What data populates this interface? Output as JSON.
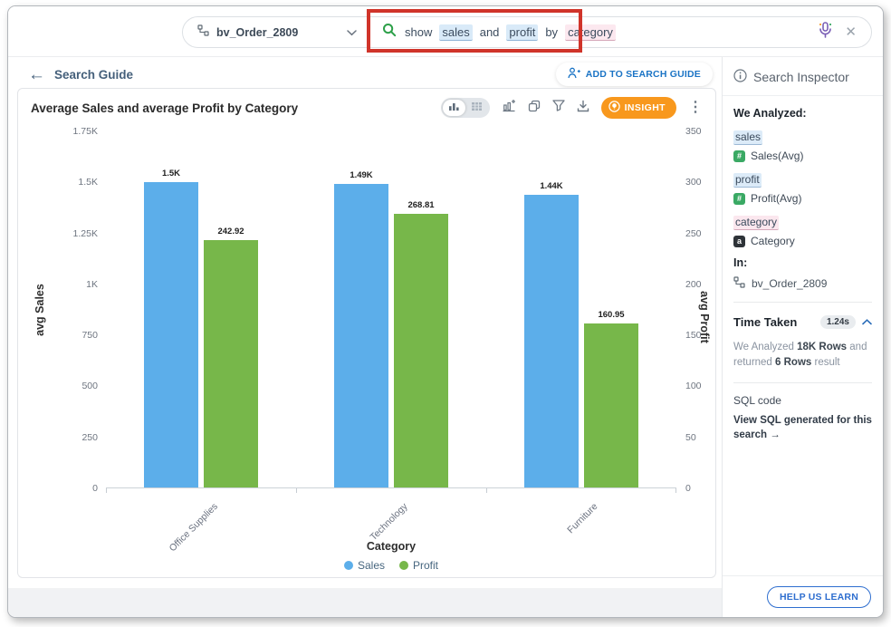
{
  "topbar": {
    "datasource": {
      "label": "bv_Order_2809"
    },
    "search": {
      "tokens": [
        {
          "text": "show",
          "type": "plain"
        },
        {
          "text": "sales",
          "type": "measure"
        },
        {
          "text": "and",
          "type": "plain"
        },
        {
          "text": "profit",
          "type": "measure"
        },
        {
          "text": "by",
          "type": "plain"
        },
        {
          "text": "category",
          "type": "attribute"
        }
      ]
    }
  },
  "nav": {
    "back_label": "Search Guide",
    "add_button_label": "ADD TO SEARCH GUIDE"
  },
  "card": {
    "title": "Average Sales and average Profit by Category",
    "insight_label": "INSIGHT"
  },
  "chart_data": {
    "type": "bar",
    "title": "Average Sales and average Profit by Category",
    "categories": [
      "Office Supplies",
      "Technology",
      "Furniture"
    ],
    "series": [
      {
        "name": "Sales",
        "axis": "left",
        "color": "#5caeea",
        "values": [
          1500,
          1490,
          1440
        ],
        "labels": [
          "1.5K",
          "1.49K",
          "1.44K"
        ]
      },
      {
        "name": "Profit",
        "axis": "right",
        "color": "#77b74a",
        "values": [
          242.92,
          268.81,
          160.95
        ],
        "labels": [
          "242.92",
          "268.81",
          "160.95"
        ]
      }
    ],
    "left_axis": {
      "label": "avg Sales",
      "min": 0,
      "max": 1750,
      "ticks": [
        {
          "label": "1.75K",
          "value": 1750
        },
        {
          "label": "1.5K",
          "value": 1500
        },
        {
          "label": "1.25K",
          "value": 1250
        },
        {
          "label": "1K",
          "value": 1000
        },
        {
          "label": "750",
          "value": 750
        },
        {
          "label": "500",
          "value": 500
        },
        {
          "label": "250",
          "value": 250
        },
        {
          "label": "0",
          "value": 0
        }
      ]
    },
    "right_axis": {
      "label": "avg Profit",
      "min": 0,
      "max": 350,
      "ticks": [
        {
          "label": "350",
          "value": 350
        },
        {
          "label": "300",
          "value": 300
        },
        {
          "label": "250",
          "value": 250
        },
        {
          "label": "200",
          "value": 200
        },
        {
          "label": "150",
          "value": 150
        },
        {
          "label": "100",
          "value": 100
        },
        {
          "label": "50",
          "value": 50
        },
        {
          "label": "0",
          "value": 0
        }
      ]
    },
    "xlabel": "Category",
    "legend": [
      {
        "name": "Sales",
        "color": "#5caeea"
      },
      {
        "name": "Profit",
        "color": "#77b74a"
      }
    ],
    "legend_position": "bottom",
    "grid": false
  },
  "inspector": {
    "title": "Search Inspector",
    "we_analyzed_label": "We Analyzed:",
    "tokens": [
      {
        "token": "sales",
        "type": "measure",
        "mapped": "Sales(Avg)",
        "icon": "#",
        "icon_bg": "#3aa964"
      },
      {
        "token": "profit",
        "type": "measure",
        "mapped": "Profit(Avg)",
        "icon": "#",
        "icon_bg": "#3aa964"
      },
      {
        "token": "category",
        "type": "attribute",
        "mapped": "Category",
        "icon": "a",
        "icon_bg": "#2e3338"
      }
    ],
    "in_label": "In:",
    "in_value": "bv_Order_2809",
    "time_taken_label": "Time Taken",
    "time_taken_value": "1.24s",
    "analyzed_parts": [
      {
        "text": "We Analyzed ",
        "bold": false
      },
      {
        "text": "18K Rows",
        "bold": true
      },
      {
        "text": " and returned ",
        "bold": false
      },
      {
        "text": "6 Rows",
        "bold": true
      },
      {
        "text": " result",
        "bold": false
      }
    ],
    "sql_label": "SQL code",
    "sql_link": "View SQL generated for this search →",
    "help_button_label": "HELP US LEARN"
  },
  "colors": {
    "bar_sales": "#5caeea",
    "bar_profit": "#77b74a",
    "accent_orange": "#f8981d",
    "accent_blue": "#1b74c5",
    "annotation_red": "#d0342a",
    "token_measure_bg": "#d9eaf8",
    "token_attribute_bg": "#fce8ef"
  }
}
